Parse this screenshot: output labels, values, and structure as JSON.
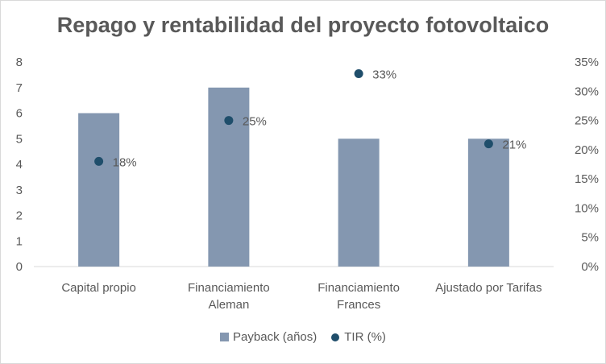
{
  "chart_data": {
    "type": "bar",
    "title": "Repago y rentabilidad del proyecto fotovoltaico",
    "categories": [
      [
        "Capital propio"
      ],
      [
        "Financiamiento",
        "Aleman"
      ],
      [
        "Financiamiento",
        "Frances"
      ],
      [
        "Ajustado por Tarifas"
      ]
    ],
    "series": [
      {
        "name": "Payback (años)",
        "type": "bar",
        "axis": "left",
        "values": [
          6,
          7,
          5,
          5
        ],
        "color": "#8497b0"
      },
      {
        "name": "TIR (%)",
        "type": "scatter",
        "axis": "right",
        "values": [
          18,
          25,
          33,
          21
        ],
        "labels": [
          "18%",
          "25%",
          "33%",
          "21%"
        ],
        "color": "#1f4e6b"
      }
    ],
    "left_axis": {
      "min": 0,
      "max": 8,
      "step": 1,
      "ticks": [
        "0",
        "1",
        "2",
        "3",
        "4",
        "5",
        "6",
        "7",
        "8"
      ]
    },
    "right_axis": {
      "min": 0,
      "max": 35,
      "step": 5,
      "ticks": [
        "0%",
        "5%",
        "10%",
        "15%",
        "20%",
        "25%",
        "30%",
        "35%"
      ]
    },
    "grid": false,
    "legend_position": "bottom"
  }
}
